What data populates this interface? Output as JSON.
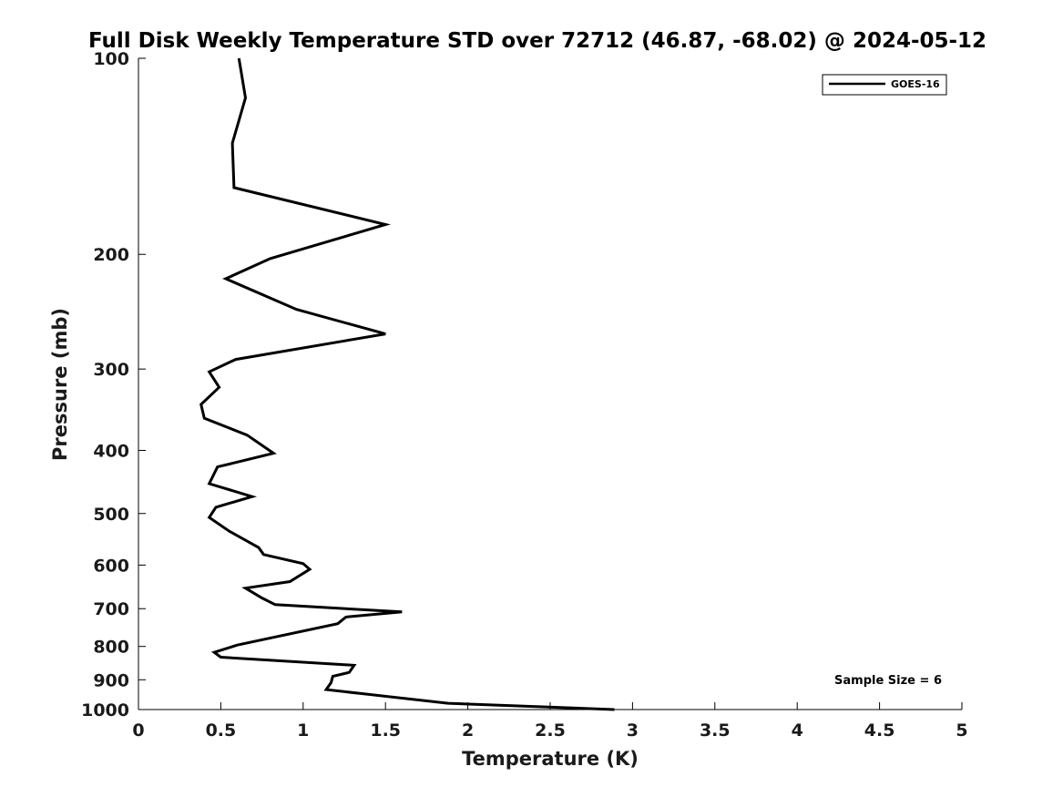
{
  "chart_data": {
    "type": "line",
    "title": "Full Disk Weekly Temperature STD over 72712 (46.87, -68.02) @ 2024-05-12",
    "xlabel": "Temperature (K)",
    "ylabel": "Pressure (mb)",
    "xlim": [
      0,
      5
    ],
    "ylim": [
      100,
      1000
    ],
    "y_scale": "log",
    "y_reversed": true,
    "grid": false,
    "legend_position": "top-right",
    "x_ticks": [
      "0",
      "0.5",
      "1",
      "1.5",
      "2",
      "2.5",
      "3",
      "3.5",
      "4",
      "4.5",
      "5"
    ],
    "y_ticks": [
      "100",
      "200",
      "300",
      "400",
      "500",
      "600",
      "700",
      "800",
      "900",
      "1000"
    ],
    "series": [
      {
        "name": "GOES-16",
        "color": "#000000",
        "x": [
          0.61,
          0.65,
          0.57,
          0.58,
          1.5,
          0.8,
          0.53,
          0.96,
          1.5,
          0.59,
          0.43,
          0.49,
          0.38,
          0.4,
          0.66,
          0.82,
          0.48,
          0.43,
          0.69,
          0.47,
          0.43,
          0.55,
          0.73,
          0.76,
          1.0,
          1.04,
          0.92,
          0.65,
          0.75,
          0.83,
          1.6,
          1.26,
          1.21,
          0.6,
          0.46,
          0.5,
          1.31,
          1.28,
          1.18,
          1.17,
          1.14,
          1.37,
          1.88,
          2.89
        ],
        "y": [
          100,
          115,
          135,
          158,
          180,
          203,
          218,
          243,
          265,
          290,
          303,
          320,
          340,
          357,
          379,
          404,
          424,
          450,
          471,
          489,
          507,
          532,
          564,
          578,
          597,
          609,
          636,
          651,
          674,
          690,
          708,
          721,
          738,
          796,
          817,
          831,
          855,
          877,
          889,
          909,
          932,
          946,
          978,
          1000
        ]
      }
    ],
    "annotations": [
      {
        "text": "Sample Size = 6"
      }
    ]
  }
}
